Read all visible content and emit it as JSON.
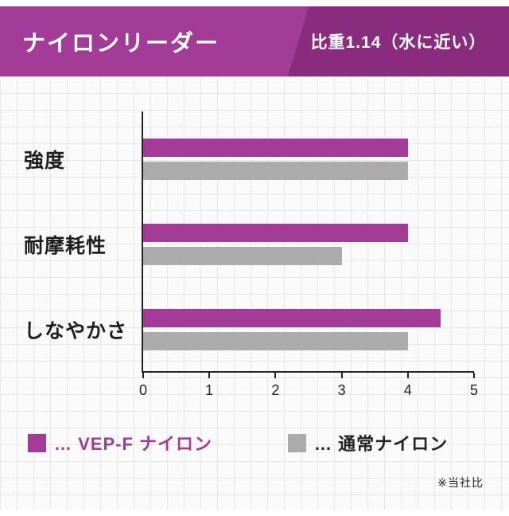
{
  "header": {
    "title": "ナイロンリーダー",
    "badge": "比重1.14（水に近い）",
    "bg_color": "#a23c96",
    "badge_bg_color": "#8a2c7e"
  },
  "chart_data": {
    "type": "bar",
    "orientation": "horizontal",
    "categories": [
      "強度",
      "耐摩耗性",
      "しなやかさ"
    ],
    "series": [
      {
        "name": "VEP-F ナイロン",
        "key": "vepf-nylon",
        "color": "#a23c96",
        "values": [
          4,
          4,
          4.5
        ]
      },
      {
        "name": "通常ナイロン",
        "key": "normal-nylon",
        "color": "#ababab",
        "values": [
          4,
          3,
          4
        ]
      }
    ],
    "xlim": [
      0,
      5
    ],
    "ticks": [
      0,
      1,
      2,
      3,
      4,
      5
    ],
    "grid": "graph-paper background",
    "legend_position": "bottom"
  },
  "legend": {
    "items": [
      {
        "label": "… VEP-F ナイロン",
        "color": "#a23c96",
        "label_color": "#a23c96"
      },
      {
        "label": "… 通常ナイロン",
        "color": "#ababab",
        "label_color": "#222222"
      }
    ]
  },
  "footnote": "※当社比"
}
